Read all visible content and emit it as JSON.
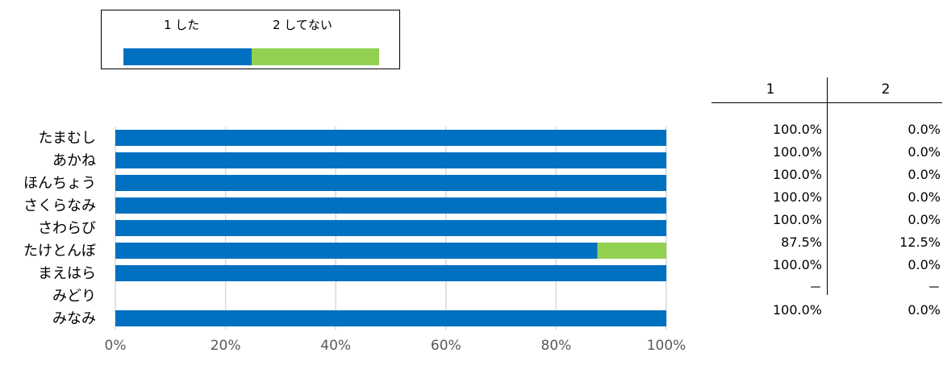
{
  "legend": {
    "items": [
      {
        "label": "1 した",
        "color": "#0070C0"
      },
      {
        "label": "2 してない",
        "color": "#92D050"
      }
    ]
  },
  "chart_data": {
    "type": "bar",
    "orientation": "horizontal",
    "stacked": true,
    "categories": [
      "たまむし",
      "あかね",
      "ほんちょう",
      "さくらなみ",
      "さわらび",
      "たけとんぼ",
      "まえはら",
      "みどり",
      "みなみ"
    ],
    "series": [
      {
        "name": "1 した",
        "color": "#0070C0",
        "values": [
          100,
          100,
          100,
          100,
          100,
          87.5,
          100,
          null,
          100
        ]
      },
      {
        "name": "2 してない",
        "color": "#92D050",
        "values": [
          0,
          0,
          0,
          0,
          0,
          12.5,
          0,
          null,
          0
        ]
      }
    ],
    "x_ticks": [
      "0%",
      "20%",
      "40%",
      "60%",
      "80%",
      "100%"
    ],
    "xlim": [
      0,
      100
    ],
    "grid": true,
    "legend_position": "top-left"
  },
  "table": {
    "headers": [
      "1",
      "2"
    ],
    "rows": [
      [
        "100.0%",
        "0.0%"
      ],
      [
        "100.0%",
        "0.0%"
      ],
      [
        "100.0%",
        "0.0%"
      ],
      [
        "100.0%",
        "0.0%"
      ],
      [
        "100.0%",
        "0.0%"
      ],
      [
        "87.5%",
        "12.5%"
      ],
      [
        "100.0%",
        "0.0%"
      ],
      [
        "－",
        "－"
      ],
      [
        "100.0%",
        "0.0%"
      ]
    ]
  }
}
